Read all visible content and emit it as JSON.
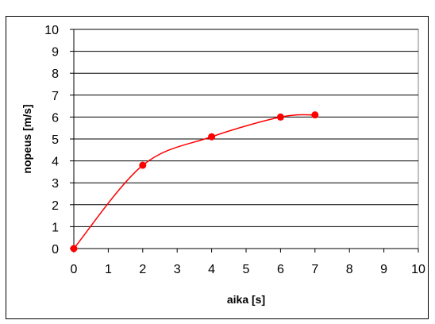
{
  "chart_data": {
    "type": "scatter",
    "mode": "smoothed-line-with-markers",
    "x": [
      0,
      2,
      4,
      6,
      7
    ],
    "y": [
      0,
      3.8,
      5.1,
      6.0,
      6.1
    ],
    "xlabel": "aika [s]",
    "ylabel": "nopeus [m/s]",
    "xlim": [
      0,
      10
    ],
    "ylim": [
      0,
      10
    ],
    "xticks": [
      0,
      1,
      2,
      3,
      4,
      5,
      6,
      7,
      8,
      9,
      10
    ],
    "yticks": [
      0,
      1,
      2,
      3,
      4,
      5,
      6,
      7,
      8,
      9,
      10
    ],
    "grid": "horizontal",
    "legend": "none",
    "series_color": "#ff0000",
    "grid_color": "#000000",
    "plot_background": "#ffffff"
  }
}
